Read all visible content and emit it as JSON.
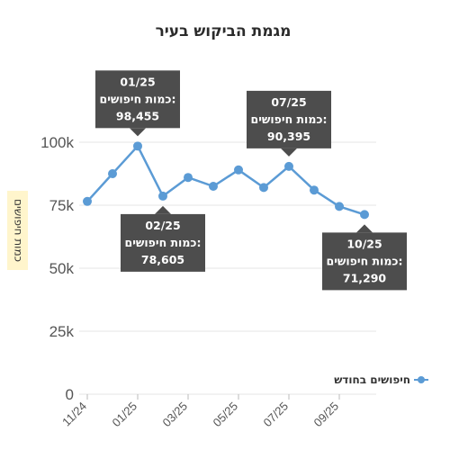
{
  "chart_data": {
    "type": "line",
    "title": "מגמת הביקוש בעיר",
    "ylabel": "כמות חיפושים",
    "xlabel": "",
    "ylim": [
      0,
      100000
    ],
    "yticks": [
      0,
      25000,
      50000,
      75000,
      100000
    ],
    "ytick_labels": [
      "0",
      "25k",
      "50k",
      "75k",
      "100k"
    ],
    "x": [
      "11/24",
      "12/24",
      "01/25",
      "02/25",
      "03/25",
      "04/25",
      "05/25",
      "06/25",
      "07/25",
      "08/25",
      "09/25",
      "10/25"
    ],
    "xtick_labels": [
      "11/24",
      "01/25",
      "03/25",
      "05/25",
      "07/25",
      "09/25"
    ],
    "grid": true,
    "legend_position": "right",
    "series": [
      {
        "name": "חיפושים בחודש",
        "color": "#5b9bd5",
        "values": [
          76500,
          87500,
          98455,
          78605,
          86000,
          82500,
          89000,
          82000,
          90395,
          81000,
          74500,
          71290
        ]
      }
    ],
    "annotations": [
      {
        "x": "01/25",
        "lines": [
          "01/25",
          "כמות חיפושים:",
          "98,455"
        ],
        "placement": "above"
      },
      {
        "x": "02/25",
        "lines": [
          "02/25",
          "כמות חיפושים:",
          "78,605"
        ],
        "placement": "below"
      },
      {
        "x": "07/25",
        "lines": [
          "07/25",
          "כמות חיפושים:",
          "90,395"
        ],
        "placement": "above"
      },
      {
        "x": "10/25",
        "lines": [
          "10/25",
          "כמות חיפושים:",
          "71,290"
        ],
        "placement": "below"
      }
    ]
  }
}
